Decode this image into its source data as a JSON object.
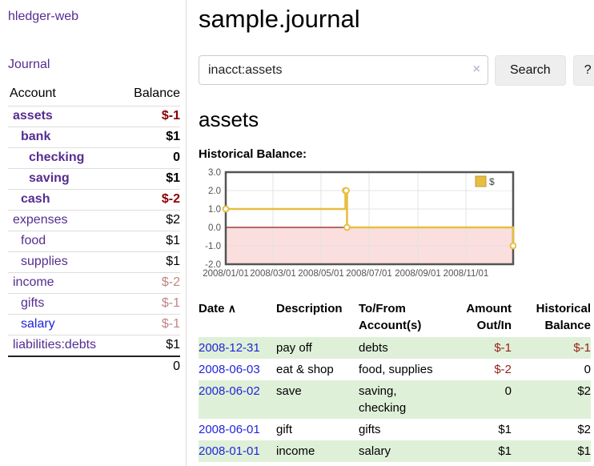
{
  "app": {
    "title": "hledger-web"
  },
  "sidebar": {
    "journal_label": "Journal",
    "account_header": "Account",
    "balance_header": "Balance",
    "accounts": [
      {
        "name": "assets",
        "depth": 0,
        "bold": true,
        "link_color": "purple",
        "balance": "$-1",
        "balance_style": "neg-bold"
      },
      {
        "name": "bank",
        "depth": 1,
        "bold": true,
        "link_color": "purple",
        "balance": "$1",
        "balance_style": "pos-bold"
      },
      {
        "name": "checking",
        "depth": 2,
        "bold": true,
        "link_color": "purple",
        "balance": "0",
        "balance_style": "pos-bold"
      },
      {
        "name": "saving",
        "depth": 2,
        "bold": true,
        "link_color": "purple",
        "balance": "$1",
        "balance_style": "pos-bold"
      },
      {
        "name": "cash",
        "depth": 1,
        "bold": true,
        "link_color": "purple",
        "balance": "$-2",
        "balance_style": "neg-bold"
      },
      {
        "name": "expenses",
        "depth": 0,
        "bold": false,
        "link_color": "purple",
        "balance": "$2",
        "balance_style": "pos"
      },
      {
        "name": "food",
        "depth": 1,
        "bold": false,
        "link_color": "purple",
        "balance": "$1",
        "balance_style": "pos"
      },
      {
        "name": "supplies",
        "depth": 1,
        "bold": false,
        "link_color": "purple",
        "balance": "$1",
        "balance_style": "pos"
      },
      {
        "name": "income",
        "depth": 0,
        "bold": false,
        "link_color": "purple",
        "balance": "$-2",
        "balance_style": "neg-faded"
      },
      {
        "name": "gifts",
        "depth": 1,
        "bold": false,
        "link_color": "purple",
        "balance": "$-1",
        "balance_style": "neg-faded"
      },
      {
        "name": "salary",
        "depth": 1,
        "bold": false,
        "link_color": "blue",
        "balance": "$-1",
        "balance_style": "neg-faded"
      },
      {
        "name": "liabilities:debts",
        "depth": 0,
        "bold": false,
        "link_color": "purple",
        "balance": "$1",
        "balance_style": "pos"
      }
    ],
    "total": "0"
  },
  "main": {
    "title": "sample.journal",
    "search": {
      "value": "inacct:assets",
      "clear_icon": "×",
      "button_label": "Search",
      "help_label": "?"
    },
    "account_heading": "assets",
    "chart_heading": "Historical Balance:"
  },
  "register": {
    "columns": [
      "Date",
      "Description",
      "To/From Account(s)",
      "Amount Out/In",
      "Historical Balance"
    ],
    "sort_icon": "∧",
    "rows": [
      {
        "date": "2008-12-31",
        "description": "pay off",
        "accounts": "debts",
        "amount": "$-1",
        "balance": "$-1"
      },
      {
        "date": "2008-06-03",
        "description": "eat & shop",
        "accounts": "food, supplies",
        "amount": "$-2",
        "balance": "0"
      },
      {
        "date": "2008-06-02",
        "description": "save",
        "accounts": "saving, checking",
        "amount": "0",
        "balance": "$2"
      },
      {
        "date": "2008-06-01",
        "description": "gift",
        "accounts": "gifts",
        "amount": "$1",
        "balance": "$2"
      },
      {
        "date": "2008-01-01",
        "description": "income",
        "accounts": "salary",
        "amount": "$1",
        "balance": "$1"
      }
    ]
  },
  "chart_data": {
    "type": "line",
    "step": true,
    "title": "Historical Balance:",
    "xrange": [
      "2008-01-01",
      "2008-12-31"
    ],
    "ylim": [
      -2,
      3
    ],
    "yticks": [
      3.0,
      2.0,
      1.0,
      0.0,
      -1.0,
      -2.0
    ],
    "xticks": [
      "2008/01/01",
      "2008/03/01",
      "2008/05/01",
      "2008/07/01",
      "2008/09/01",
      "2008/11/01"
    ],
    "grid": true,
    "legend": {
      "label": "$",
      "position": "top-right"
    },
    "series": [
      {
        "name": "$",
        "color": "#e7be43",
        "marker": "open-circle",
        "points": [
          [
            "2008-01-01",
            1
          ],
          [
            "2008-06-01",
            2
          ],
          [
            "2008-06-02",
            2
          ],
          [
            "2008-06-03",
            0
          ],
          [
            "2008-12-31",
            -1
          ]
        ]
      }
    ],
    "negative_region_fill": "#fbdede",
    "zero_line_color": "#8b1a1a",
    "gridline_color": "#e3e3e3",
    "plot_border_color": "#545454",
    "tick_label_color": "#545454"
  },
  "colors": {
    "link_purple": "#552d90",
    "link_blue": "#2126d8",
    "negative_bold_red": "#8b0000",
    "negative_faded_red": "#c28484",
    "register_negative_red": "#99201c",
    "row_green": "#dff0d8",
    "chart_gold": "#e7be43"
  }
}
